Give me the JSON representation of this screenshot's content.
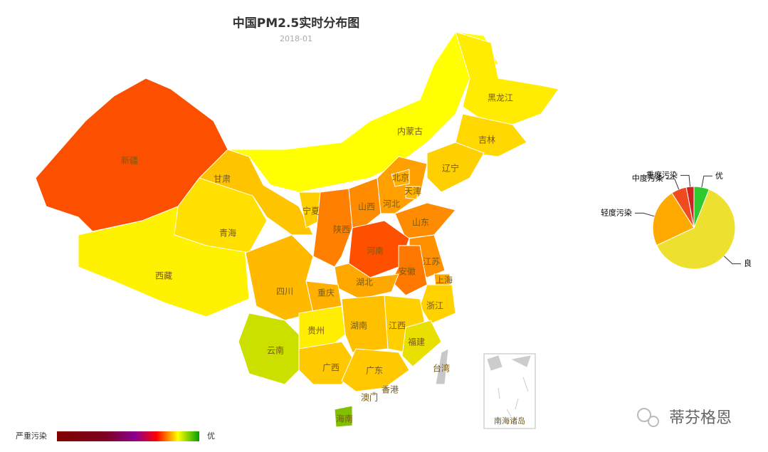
{
  "title": "中国PM2.5实时分布图",
  "subtitle": "2018-01",
  "provinces": [
    {
      "name": "新疆",
      "color": "#fc5000"
    },
    {
      "name": "西藏",
      "color": "#fff200"
    },
    {
      "name": "青海",
      "color": "#ffe000"
    },
    {
      "name": "甘肃",
      "color": "#ffc400"
    },
    {
      "name": "内蒙古",
      "color": "#ffff00"
    },
    {
      "name": "黑龙江",
      "color": "#ffec00"
    },
    {
      "name": "吉林",
      "color": "#ffd800"
    },
    {
      "name": "辽宁",
      "color": "#ffd000"
    },
    {
      "name": "宁夏",
      "color": "#ffd000"
    },
    {
      "name": "陕西",
      "color": "#ff8000"
    },
    {
      "name": "山西",
      "color": "#ff8c00"
    },
    {
      "name": "河北",
      "color": "#ffa000"
    },
    {
      "name": "北京",
      "color": "#ffb000"
    },
    {
      "name": "天津",
      "color": "#ffb400"
    },
    {
      "name": "山东",
      "color": "#ff8c00"
    },
    {
      "name": "河南",
      "color": "#ff5000"
    },
    {
      "name": "江苏",
      "color": "#ff9000"
    },
    {
      "name": "安徽",
      "color": "#ff7800"
    },
    {
      "name": "上海",
      "color": "#ffa800"
    },
    {
      "name": "湖北",
      "color": "#ffa800"
    },
    {
      "name": "重庆",
      "color": "#ffb000"
    },
    {
      "name": "四川",
      "color": "#ffba00"
    },
    {
      "name": "浙江",
      "color": "#ffd200"
    },
    {
      "name": "湖南",
      "color": "#ffc000"
    },
    {
      "name": "江西",
      "color": "#ffd000"
    },
    {
      "name": "福建",
      "color": "#e8e000"
    },
    {
      "name": "贵州",
      "color": "#ffee00"
    },
    {
      "name": "云南",
      "color": "#cce000"
    },
    {
      "name": "广西",
      "color": "#ffc800"
    },
    {
      "name": "广东",
      "color": "#ffc800"
    },
    {
      "name": "海南",
      "color": "#80c000"
    },
    {
      "name": "台湾",
      "color": "#c8c8c8"
    },
    {
      "name": "香港",
      "color": "#c8c8c8"
    },
    {
      "name": "澳门",
      "color": "#c8c8c8"
    }
  ],
  "south_china_sea": "南海诸岛",
  "legend": {
    "high": "严重污染",
    "low": "优"
  },
  "chart_data": {
    "type": "pie",
    "categories": [
      "优",
      "良",
      "轻度污染",
      "中度污染",
      "重度污染"
    ],
    "values": [
      6,
      62,
      23,
      6,
      3
    ],
    "colors": [
      "#2ec92e",
      "#ede02e",
      "#ffaa00",
      "#f04a20",
      "#d02020"
    ]
  },
  "watermark": "蒂芬格恩"
}
